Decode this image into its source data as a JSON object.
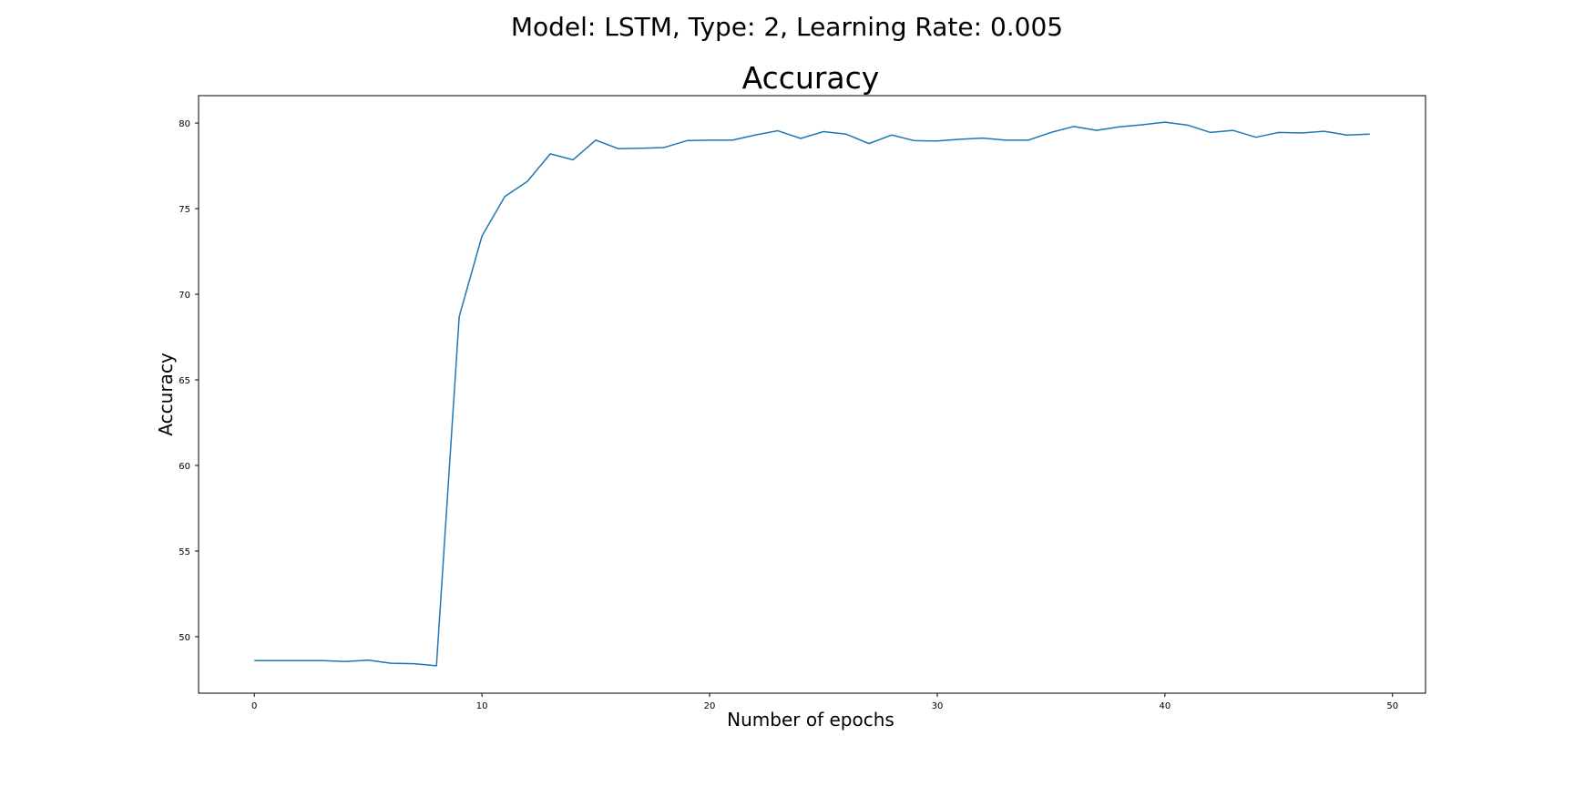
{
  "suptitle": "Model: LSTM, Type: 2, Learning Rate: 0.005",
  "chart_data": {
    "type": "line",
    "title": "Accuracy",
    "xlabel": "Number of epochs",
    "ylabel": "Accuracy",
    "xlim": [
      -2.45,
      51.45
    ],
    "ylim": [
      46.7,
      81.6
    ],
    "xticks": [
      0,
      10,
      20,
      30,
      40,
      50
    ],
    "yticks": [
      50,
      55,
      60,
      65,
      70,
      75,
      80
    ],
    "grid": false,
    "line_color": "#1f77b4",
    "x": [
      0,
      1,
      2,
      3,
      4,
      5,
      6,
      7,
      8,
      9,
      10,
      11,
      12,
      13,
      14,
      15,
      16,
      17,
      18,
      19,
      20,
      21,
      22,
      23,
      24,
      25,
      26,
      27,
      28,
      29,
      30,
      31,
      32,
      33,
      34,
      35,
      36,
      37,
      38,
      39,
      40,
      41,
      42,
      43,
      44,
      45,
      46,
      47,
      48,
      49
    ],
    "series": [
      {
        "values": [
          48.6,
          48.6,
          48.6,
          48.6,
          48.55,
          48.63,
          48.45,
          48.42,
          48.3,
          68.7,
          73.4,
          75.7,
          76.6,
          78.2,
          77.85,
          79.0,
          78.5,
          78.53,
          78.57,
          78.97,
          79.0,
          79.0,
          79.3,
          79.55,
          79.1,
          79.5,
          79.35,
          78.8,
          79.3,
          78.97,
          78.95,
          79.05,
          79.12,
          79.0,
          79.0,
          79.45,
          79.8,
          79.57,
          79.78,
          79.9,
          80.05,
          79.88,
          79.45,
          79.57,
          79.17,
          79.45,
          79.42,
          79.52,
          79.3,
          79.35
        ]
      }
    ]
  }
}
